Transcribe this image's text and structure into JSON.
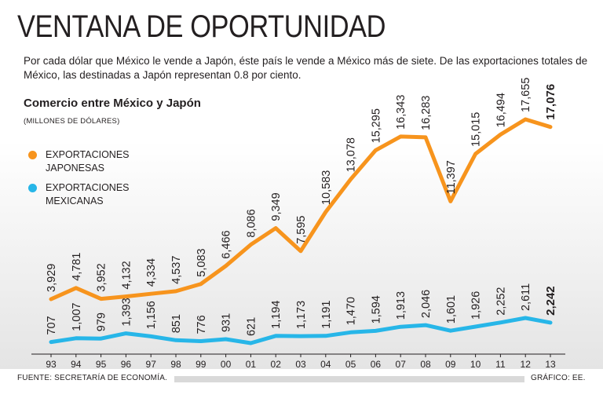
{
  "headline": "VENTANA DE OPORTUNIDAD",
  "intro": "Por cada dólar que México le vende a Japón, éste país le vende a México más de siete. De las exportaciones totales de México, las destinadas a Japón representan 0.8 por ciento.",
  "footer": {
    "source": "FUENTE: SECRETARÍA DE ECONOMÍA.",
    "credit": "GRÁFICO: EE."
  },
  "chart_data": {
    "type": "line",
    "title": "Comercio entre México y Japón",
    "units": "(MILLONES DE DÓLARES)",
    "categories": [
      "93",
      "94",
      "95",
      "96",
      "97",
      "98",
      "99",
      "00",
      "01",
      "02",
      "03",
      "04",
      "05",
      "06",
      "07",
      "08",
      "09",
      "10",
      "11",
      "12",
      "13"
    ],
    "series": [
      {
        "name": "EXPORTACIONES JAPONESAS",
        "color": "#f7941d",
        "values": [
          3929,
          4781,
          3952,
          4132,
          4334,
          4537,
          5083,
          6466,
          8086,
          9349,
          7595,
          10583,
          13078,
          15295,
          16343,
          16283,
          11397,
          15015,
          16494,
          17655,
          17076
        ],
        "labels": [
          "3,929",
          "4,781",
          "3,952",
          "4,132",
          "4,334",
          "4,537",
          "5,083",
          "6,466",
          "8,086",
          "9,349",
          "7,595",
          "10,583",
          "13,078",
          "15,295",
          "16,343",
          "16,283",
          "11,397",
          "15,015",
          "16,494",
          "17,655",
          "17,076"
        ]
      },
      {
        "name": "EXPORTACIONES MEXICANAS",
        "color": "#27b6e8",
        "values": [
          707,
          1007,
          979,
          1393,
          1156,
          851,
          776,
          931,
          621,
          1194,
          1173,
          1191,
          1470,
          1594,
          1913,
          2046,
          1601,
          1926,
          2252,
          2611,
          2242
        ],
        "labels": [
          "707",
          "1,007",
          "979",
          "1,393",
          "1,156",
          "851",
          "776",
          "931",
          "621",
          "1,194",
          "1,173",
          "1,191",
          "1,470",
          "1,594",
          "1,913",
          "2,046",
          "1,601",
          "1,926",
          "2,252",
          "2,611",
          "2,242"
        ]
      }
    ],
    "highlight_last": true,
    "background_gradient": [
      "#ffffff",
      "#e6e6e6"
    ],
    "grid": false,
    "legend": "left"
  }
}
